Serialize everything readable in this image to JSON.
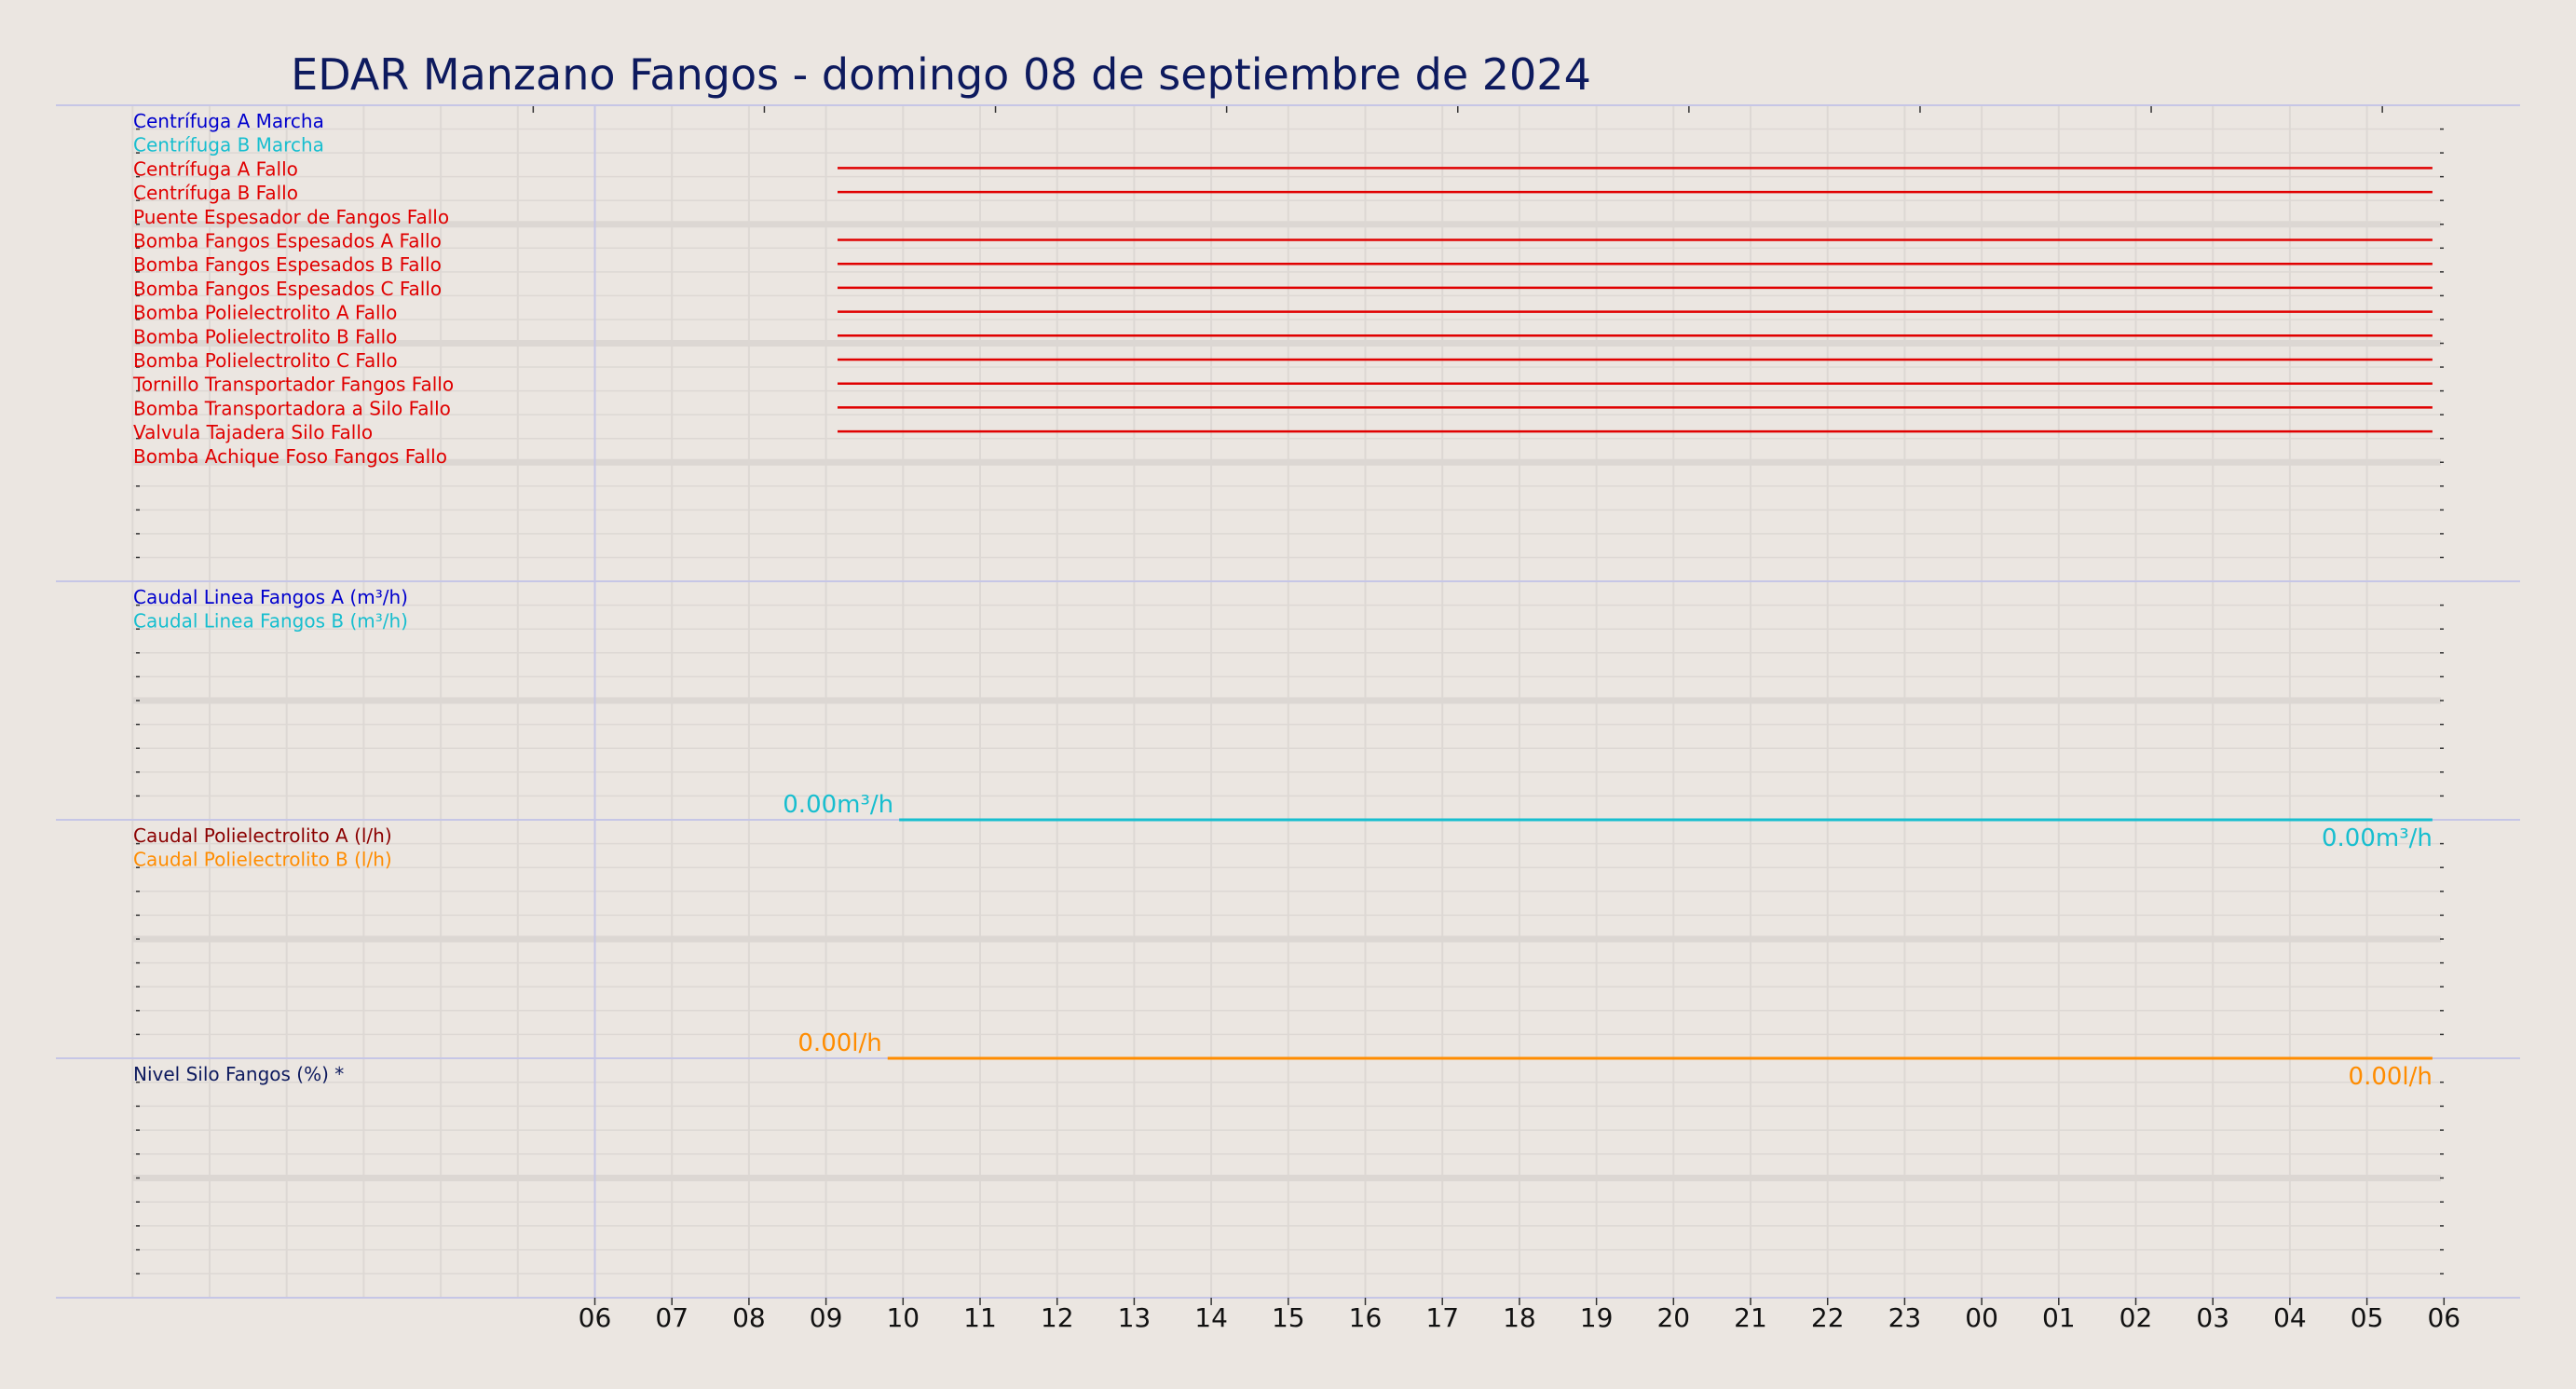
{
  "title": "EDAR Manzano Fangos   -   domingo 08 de septiembre de 2024",
  "colors": {
    "background": "#ebe6e1",
    "title": "#0d1a5e",
    "separator": "#c6c6e6",
    "grid": "#ddd8d4",
    "band": "#dcd7d3",
    "blue": "#0000cd",
    "cyan": "#17becf",
    "red": "#e00000",
    "darkred": "#8b0000",
    "orange": "#ff8c00",
    "navy": "#0d1a5e"
  },
  "chart_data": {
    "type": "line",
    "x_ticks": [
      "06",
      "07",
      "08",
      "09",
      "10",
      "11",
      "12",
      "13",
      "14",
      "15",
      "16",
      "17",
      "18",
      "19",
      "20",
      "21",
      "22",
      "23",
      "00",
      "01",
      "02",
      "03",
      "04",
      "05",
      "06"
    ],
    "panels": [
      {
        "name": "estados",
        "labels": [
          {
            "text": "Centrífuga A Marcha",
            "color": "blue"
          },
          {
            "text": "Centrífuga B Marcha",
            "color": "cyan"
          },
          {
            "text": "Centrífuga A Fallo",
            "color": "red"
          },
          {
            "text": "Centrífuga B Fallo",
            "color": "red"
          },
          {
            "text": "Puente Espesador de Fangos Fallo",
            "color": "red"
          },
          {
            "text": "Bomba Fangos Espesados A Fallo",
            "color": "red"
          },
          {
            "text": "Bomba Fangos Espesados B Fallo",
            "color": "red"
          },
          {
            "text": "Bomba Fangos Espesados C Fallo",
            "color": "red"
          },
          {
            "text": "Bomba Polielectrolito A Fallo",
            "color": "red"
          },
          {
            "text": "Bomba Polielectrolito B Fallo",
            "color": "red"
          },
          {
            "text": "Bomba Polielectrolito C Fallo",
            "color": "red"
          },
          {
            "text": "Tornillo Transportador Fangos Fallo",
            "color": "red"
          },
          {
            "text": "Bomba Transportadora a Silo Fallo",
            "color": "red"
          },
          {
            "text": "Valvula Tajadera Silo Fallo",
            "color": "red"
          },
          {
            "text": "Bomba Achique Foso Fangos Fallo",
            "color": "red"
          }
        ],
        "active_intervals": [
          {
            "row": 2,
            "start_hour": 9.15,
            "end_hour": 29.85
          },
          {
            "row": 3,
            "start_hour": 9.15,
            "end_hour": 29.85
          },
          {
            "row": 5,
            "start_hour": 9.15,
            "end_hour": 29.85
          },
          {
            "row": 6,
            "start_hour": 9.15,
            "end_hour": 29.85
          },
          {
            "row": 7,
            "start_hour": 9.15,
            "end_hour": 29.85
          },
          {
            "row": 8,
            "start_hour": 9.15,
            "end_hour": 29.85
          },
          {
            "row": 9,
            "start_hour": 9.15,
            "end_hour": 29.85
          },
          {
            "row": 10,
            "start_hour": 9.15,
            "end_hour": 29.85
          },
          {
            "row": 11,
            "start_hour": 9.15,
            "end_hour": 29.85
          },
          {
            "row": 12,
            "start_hour": 9.15,
            "end_hour": 29.85
          },
          {
            "row": 13,
            "start_hour": 9.15,
            "end_hour": 29.85
          }
        ]
      },
      {
        "name": "caudal-fangos",
        "labels": [
          {
            "text": "Caudal Linea Fangos A (m³/h)",
            "color": "blue"
          },
          {
            "text": "Caudal Linea Fangos B (m³/h)",
            "color": "cyan"
          }
        ],
        "series": [
          {
            "color": "cyan",
            "x_start": 9.95,
            "x_end": 29.85,
            "y": 0.0
          }
        ],
        "value_labels": [
          {
            "text": "0.00m³/h",
            "color": "cyan",
            "position": "before-start"
          },
          {
            "text": "0.00m³/h",
            "color": "cyan",
            "position": "end"
          }
        ]
      },
      {
        "name": "caudal-polielectrolito",
        "labels": [
          {
            "text": "Caudal Polielectrolito A (l/h)",
            "color": "darkred"
          },
          {
            "text": "Caudal Polielectrolito B (l/h)",
            "color": "orange"
          }
        ],
        "series": [
          {
            "color": "orange",
            "x_start": 9.8,
            "x_end": 29.85,
            "y": 0.0
          }
        ],
        "value_labels": [
          {
            "text": "0.00l/h",
            "color": "orange",
            "position": "before-start"
          },
          {
            "text": "0.00l/h",
            "color": "orange",
            "position": "end"
          }
        ]
      },
      {
        "name": "nivel-silo",
        "labels": [
          {
            "text": "Nivel Silo Fangos (%) *",
            "color": "navy"
          }
        ],
        "series": []
      }
    ]
  }
}
